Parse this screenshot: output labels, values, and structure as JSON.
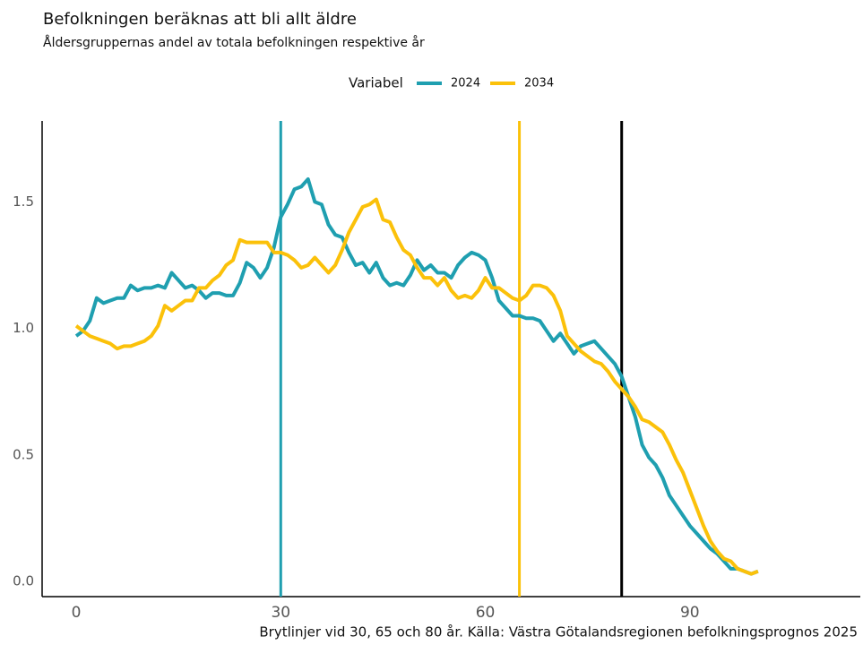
{
  "chart_data": {
    "type": "line",
    "title": "Befolkningen beräknas att bli allt äldre",
    "subtitle": "Åldersgruppernas andel av totala befolkningen respektive år",
    "caption": "Brytlinjer vid 30, 65 och 80 år. Källa: Västra Götalandsregionen befolkningsprognos 2025",
    "legend_title": "Variabel",
    "legend_position": "top",
    "x": [
      0,
      1,
      2,
      3,
      4,
      5,
      6,
      7,
      8,
      9,
      10,
      11,
      12,
      13,
      14,
      15,
      16,
      17,
      18,
      19,
      20,
      21,
      22,
      23,
      24,
      25,
      26,
      27,
      28,
      29,
      30,
      31,
      32,
      33,
      34,
      35,
      36,
      37,
      38,
      39,
      40,
      41,
      42,
      43,
      44,
      45,
      46,
      47,
      48,
      49,
      50,
      51,
      52,
      53,
      54,
      55,
      56,
      57,
      58,
      59,
      60,
      61,
      62,
      63,
      64,
      65,
      66,
      67,
      68,
      69,
      70,
      71,
      72,
      73,
      74,
      75,
      76,
      77,
      78,
      79,
      80,
      81,
      82,
      83,
      84,
      85,
      86,
      87,
      88,
      89,
      90,
      91,
      92,
      93,
      94,
      95,
      96,
      97,
      98,
      99,
      100
    ],
    "series": [
      {
        "name": "2024",
        "color": "#1f9fb0",
        "values": [
          0.97,
          0.99,
          1.03,
          1.12,
          1.1,
          1.11,
          1.12,
          1.12,
          1.17,
          1.15,
          1.16,
          1.16,
          1.17,
          1.16,
          1.22,
          1.19,
          1.16,
          1.17,
          1.15,
          1.12,
          1.14,
          1.14,
          1.13,
          1.13,
          1.18,
          1.26,
          1.24,
          1.2,
          1.24,
          1.32,
          1.44,
          1.49,
          1.55,
          1.56,
          1.59,
          1.5,
          1.49,
          1.41,
          1.37,
          1.36,
          1.3,
          1.25,
          1.26,
          1.22,
          1.26,
          1.2,
          1.17,
          1.18,
          1.17,
          1.21,
          1.27,
          1.23,
          1.25,
          1.22,
          1.22,
          1.2,
          1.25,
          1.28,
          1.3,
          1.29,
          1.27,
          1.2,
          1.11,
          1.08,
          1.05,
          1.05,
          1.04,
          1.04,
          1.03,
          0.99,
          0.95,
          0.98,
          0.94,
          0.9,
          0.93,
          0.94,
          0.95,
          0.92,
          0.89,
          0.86,
          0.81,
          0.73,
          0.65,
          0.54,
          0.49,
          0.46,
          0.41,
          0.34,
          0.3,
          0.26,
          0.22,
          0.19,
          0.16,
          0.13,
          0.11,
          0.08,
          0.05,
          0.05,
          0.04,
          0.03,
          0.04
        ]
      },
      {
        "name": "2034",
        "color": "#fbc10a",
        "values": [
          1.01,
          0.99,
          0.97,
          0.96,
          0.95,
          0.94,
          0.92,
          0.93,
          0.93,
          0.94,
          0.95,
          0.97,
          1.01,
          1.09,
          1.07,
          1.09,
          1.11,
          1.11,
          1.16,
          1.16,
          1.19,
          1.21,
          1.25,
          1.27,
          1.35,
          1.34,
          1.34,
          1.34,
          1.34,
          1.3,
          1.3,
          1.29,
          1.27,
          1.24,
          1.25,
          1.28,
          1.25,
          1.22,
          1.25,
          1.31,
          1.38,
          1.43,
          1.48,
          1.49,
          1.51,
          1.43,
          1.42,
          1.36,
          1.31,
          1.29,
          1.24,
          1.2,
          1.2,
          1.17,
          1.2,
          1.15,
          1.12,
          1.13,
          1.12,
          1.15,
          1.2,
          1.16,
          1.16,
          1.14,
          1.12,
          1.11,
          1.13,
          1.17,
          1.17,
          1.16,
          1.13,
          1.07,
          0.97,
          0.94,
          0.91,
          0.89,
          0.87,
          0.86,
          0.83,
          0.79,
          0.76,
          0.73,
          0.69,
          0.64,
          0.63,
          0.61,
          0.59,
          0.54,
          0.48,
          0.43,
          0.36,
          0.29,
          0.22,
          0.16,
          0.12,
          0.09,
          0.08,
          0.05,
          0.04,
          0.03,
          0.04
        ]
      }
    ],
    "vlines": [
      {
        "x": 30,
        "color": "#1f9fb0"
      },
      {
        "x": 65,
        "color": "#fbc10a"
      },
      {
        "x": 80,
        "color": "#000000"
      }
    ],
    "xlim": [
      -5,
      115
    ],
    "ylim": [
      -0.06,
      1.82
    ],
    "xticks": [
      0,
      30,
      60,
      90
    ],
    "yticks": [
      {
        "value": 0,
        "label": "0.0"
      },
      0.5,
      {
        "value": 1,
        "label": "1.0"
      },
      1.5
    ],
    "grid": false
  }
}
